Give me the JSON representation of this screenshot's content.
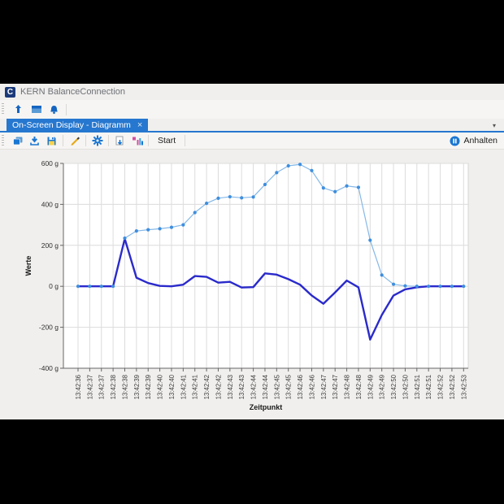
{
  "titlebar": {
    "app_title": "KERN BalanceConnection",
    "logo_letter": "C"
  },
  "main_toolbar": {
    "icons": [
      "upload-icon",
      "window-icon",
      "notification-icon"
    ]
  },
  "tabstrip": {
    "active_tab": "On-Screen Display - Diagramm",
    "close_glyph": "×",
    "overflow_glyph": "▾"
  },
  "chart_toolbar": {
    "icons": [
      "copy-icon",
      "import-icon",
      "save-icon",
      "pen-icon",
      "gear-icon",
      "export-icon",
      "stats-icon"
    ],
    "start_label": "Start",
    "stop_label": "Anhalten"
  },
  "colors": {
    "accent_blue": "#2677cf",
    "icon_blue": "#1976d2",
    "series_light_line": "#86b8e8",
    "series_light_marker": "#3e8ede",
    "series_dark": "#2a2acb"
  },
  "chart_data": {
    "type": "line",
    "title": "",
    "xlabel": "Zeitpunkt",
    "ylabel": "Werte",
    "ylim": [
      -400,
      600
    ],
    "ytick_step": 200,
    "yunit": "g",
    "grid": true,
    "legend": "none",
    "categories": [
      "13:42:36",
      "13:42:37",
      "13:42:37",
      "13:42:38",
      "13:42:38",
      "13:42:39",
      "13:42:39",
      "13:42:40",
      "13:42:40",
      "13:42:41",
      "13:42:41",
      "13:42:42",
      "13:42:42",
      "13:42:43",
      "13:42:43",
      "13:42:44",
      "13:42:44",
      "13:42:45",
      "13:42:45",
      "13:42:46",
      "13:42:46",
      "13:42:47",
      "13:42:47",
      "13:42:48",
      "13:42:48",
      "13:42:49",
      "13:42:49",
      "13:42:50",
      "13:42:50",
      "13:42:51",
      "13:42:51",
      "13:42:52",
      "13:42:52",
      "13:42:53"
    ],
    "series": [
      {
        "name": "series-1-light",
        "color": "#3e8ede",
        "line_color": "#86b8e8",
        "markers": true,
        "values": [
          0,
          0,
          0,
          0,
          235,
          270,
          276,
          281,
          288,
          300,
          360,
          405,
          430,
          437,
          432,
          436,
          497,
          555,
          588,
          595,
          565,
          480,
          462,
          490,
          483,
          225,
          55,
          10,
          2,
          0,
          0,
          0,
          0,
          0
        ]
      },
      {
        "name": "series-2-dark",
        "color": "#2a2acb",
        "line_color": "#2a2acb",
        "markers": false,
        "values": [
          0,
          0,
          0,
          0,
          232,
          42,
          16,
          2,
          0,
          8,
          50,
          46,
          18,
          22,
          -6,
          -4,
          63,
          57,
          35,
          8,
          -45,
          -85,
          -30,
          28,
          -5,
          -260,
          -140,
          -45,
          -15,
          -5,
          0,
          0,
          0,
          0
        ]
      }
    ]
  }
}
